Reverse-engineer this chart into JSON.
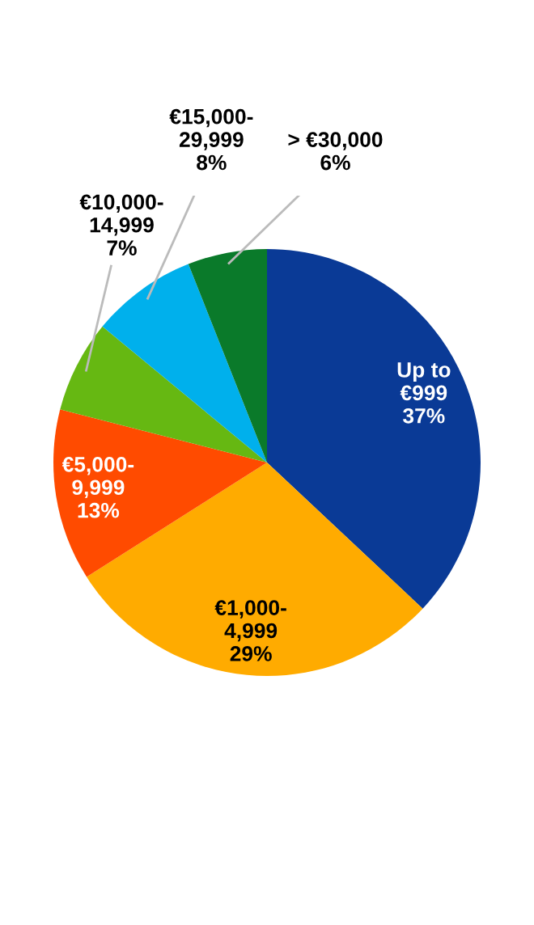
{
  "chart_data": {
    "type": "pie",
    "categories": [
      "Up to\n€999",
      "€1,000-\n4,999",
      "€5,000-\n9,999",
      "€10,000-\n14,999",
      "€15,000-\n29,999",
      "> €30,000"
    ],
    "values": [
      37,
      29,
      13,
      7,
      8,
      6
    ],
    "value_labels": [
      "37%",
      "29%",
      "13%",
      "7%",
      "8%",
      "6%"
    ],
    "colors": [
      "#0a3a96",
      "#ffab00",
      "#ff4b00",
      "#66b812",
      "#00b0ec",
      "#0a7a2a"
    ],
    "legend": false
  }
}
